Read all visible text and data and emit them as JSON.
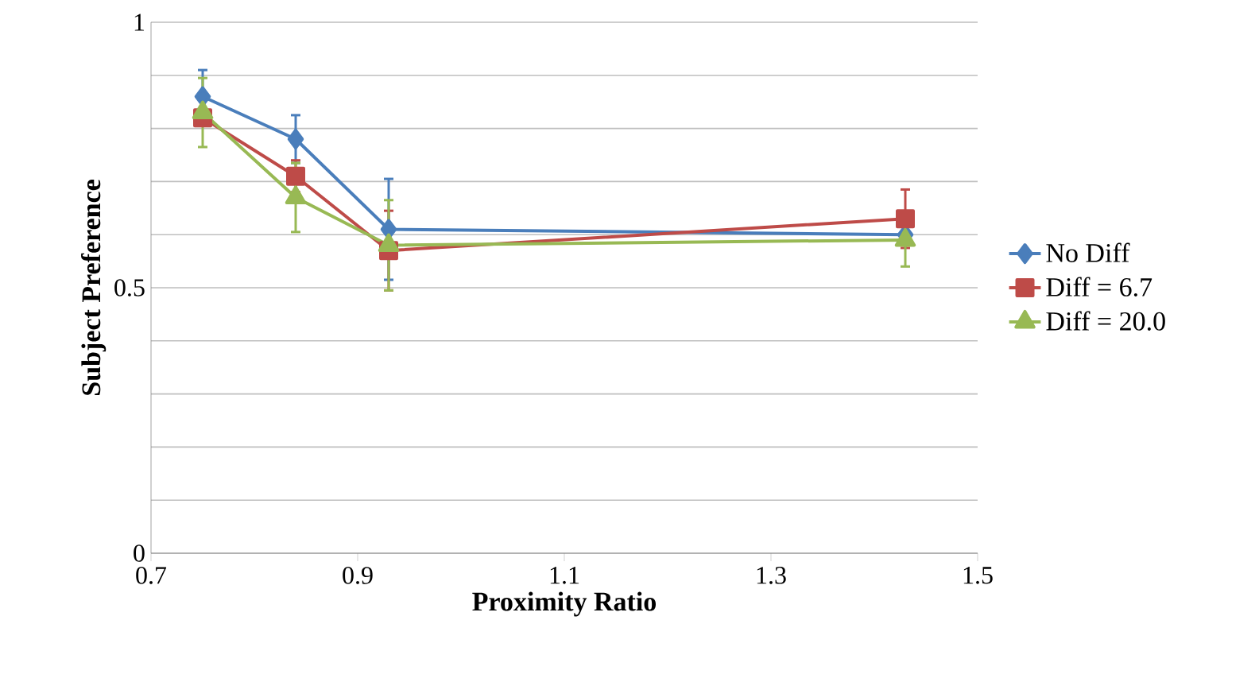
{
  "chart_data": {
    "type": "line",
    "xlabel": "Proximity Ratio",
    "ylabel": "Subject Preference",
    "xlim": [
      0.7,
      1.5
    ],
    "xticks": [
      0.7,
      0.9,
      1.1,
      1.3,
      1.5
    ],
    "ylim": [
      0,
      1
    ],
    "yticks": [
      0,
      {
        "value": 0.1,
        "label": null
      },
      {
        "value": 0.2,
        "label": null
      },
      {
        "value": 0.3,
        "label": null
      },
      {
        "value": 0.4,
        "label": null
      },
      0.5,
      {
        "value": 0.6,
        "label": null
      },
      {
        "value": 0.7,
        "label": null
      },
      {
        "value": 0.8,
        "label": null
      },
      {
        "value": 0.9,
        "label": null
      },
      1
    ],
    "grid": "y",
    "legend": "right",
    "series": [
      {
        "name": "No Diff",
        "color": "#4a7ebb",
        "marker": "diamond",
        "x": [
          0.75,
          0.84,
          0.93,
          1.43
        ],
        "values": [
          0.86,
          0.78,
          0.61,
          0.6
        ],
        "errors": [
          0.05,
          0.045,
          0.095,
          null
        ]
      },
      {
        "name": "Diff = 6.7",
        "color": "#be4b48",
        "marker": "square",
        "x": [
          0.75,
          0.84,
          0.93,
          1.43
        ],
        "values": [
          0.82,
          0.71,
          0.57,
          0.63
        ],
        "errors": [
          null,
          0.03,
          0.075,
          0.055
        ]
      },
      {
        "name": "Diff = 20.0",
        "color": "#98b954",
        "marker": "triangle",
        "x": [
          0.75,
          0.84,
          0.93,
          1.43
        ],
        "values": [
          0.83,
          0.67,
          0.58,
          0.59
        ],
        "errors": [
          0.065,
          0.065,
          0.085,
          0.05
        ]
      }
    ]
  }
}
